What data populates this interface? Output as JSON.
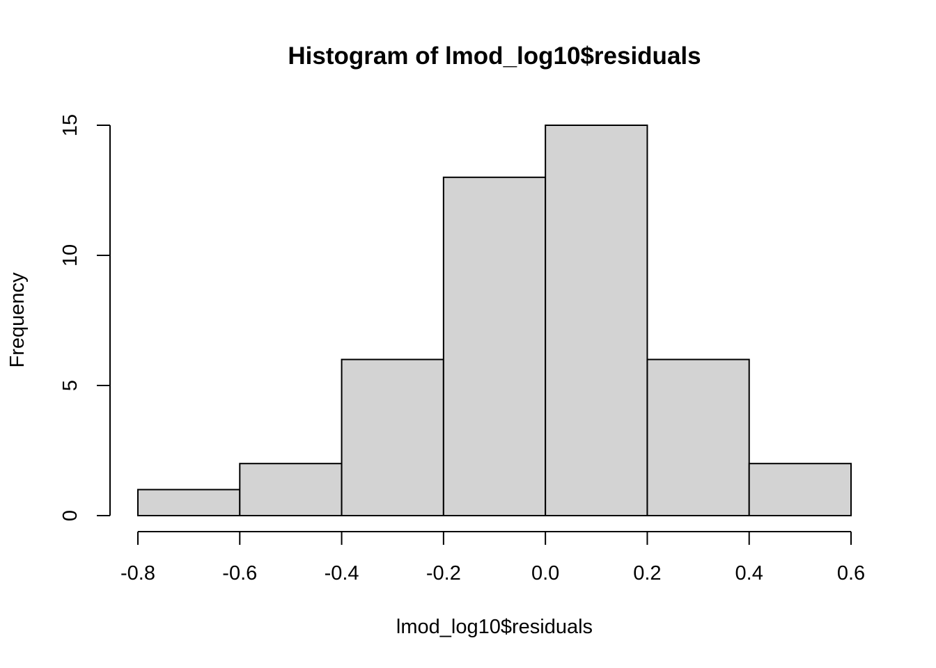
{
  "chart_data": {
    "type": "bar",
    "subtype": "histogram",
    "title": "Histogram of lmod_log10$residuals",
    "xlabel": "lmod_log10$residuals",
    "ylabel": "Frequency",
    "bins": [
      {
        "start": -0.8,
        "end": -0.6,
        "count": 1
      },
      {
        "start": -0.6,
        "end": -0.4,
        "count": 2
      },
      {
        "start": -0.4,
        "end": -0.2,
        "count": 6
      },
      {
        "start": -0.2,
        "end": 0.0,
        "count": 13
      },
      {
        "start": 0.0,
        "end": 0.2,
        "count": 15
      },
      {
        "start": 0.2,
        "end": 0.4,
        "count": 6
      },
      {
        "start": 0.4,
        "end": 0.6,
        "count": 2
      }
    ],
    "xticks": [
      -0.8,
      -0.6,
      -0.4,
      -0.2,
      0.0,
      0.2,
      0.4,
      0.6
    ],
    "xtick_labels": [
      "-0.8",
      "-0.6",
      "-0.4",
      "-0.2",
      "0.0",
      "0.2",
      "0.4",
      "0.6"
    ],
    "yticks": [
      0,
      5,
      10,
      15
    ],
    "ytick_labels": [
      "0",
      "5",
      "10",
      "15"
    ],
    "xlim": [
      -0.8,
      0.6
    ],
    "ylim": [
      0,
      15
    ],
    "grid": false,
    "legend": "none",
    "colors": {
      "bar_fill": "#d3d3d3",
      "bar_stroke": "#000000",
      "axis": "#000000",
      "background": "#ffffff"
    }
  }
}
